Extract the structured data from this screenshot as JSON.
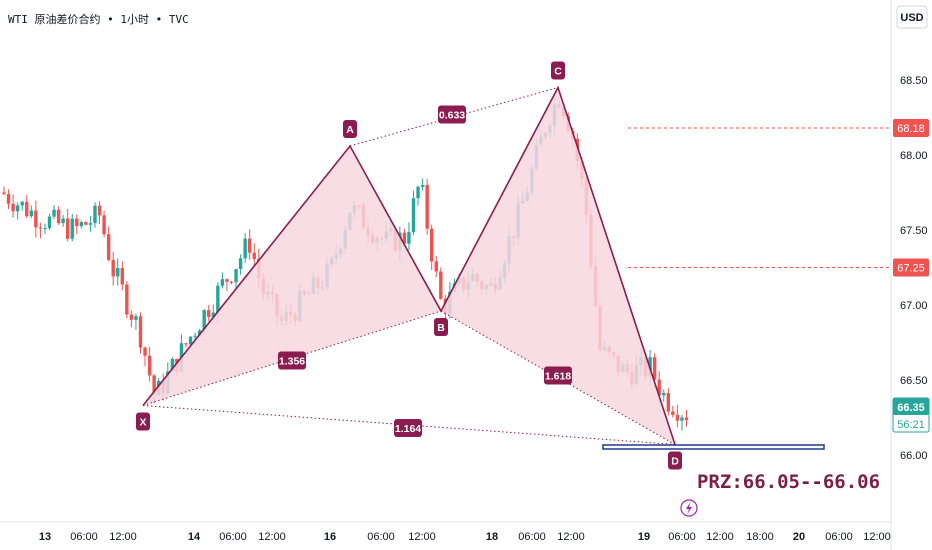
{
  "header": {
    "title": "WTI 原油差价合约 • 1小时 • TVC",
    "currency": "USD"
  },
  "chart_data": {
    "type": "candlestick-harmonic",
    "symbol": "WTI 原油差价合约",
    "interval": "1小时",
    "source": "TVC",
    "ylim": [
      65.7,
      68.93
    ],
    "y_ticks": [
      "68.50",
      "68.00",
      "67.50",
      "67.00",
      "66.50",
      "66.00"
    ],
    "x_ticks": [
      "13",
      "06:00",
      "12:00",
      "14",
      "06:00",
      "12:00",
      "16",
      "06:00",
      "12:00",
      "18",
      "06:00",
      "12:00",
      "19",
      "06:00",
      "12:00",
      "18:00",
      "20",
      "06:00",
      "12:00"
    ],
    "colors": {
      "up": "#26a69a",
      "down": "#ef5350",
      "pattern": "#8b1c4f",
      "fill": "#f8d7e1",
      "prz_box": "#1e3a8a"
    },
    "pattern_points": [
      {
        "label": "X",
        "price": 66.33
      },
      {
        "label": "A",
        "price": 68.06
      },
      {
        "label": "B",
        "price": 66.96
      },
      {
        "label": "C",
        "price": 68.45
      },
      {
        "label": "D",
        "price": 66.07
      }
    ],
    "ratios": [
      "1.356",
      "0.633",
      "1.618",
      "1.164"
    ],
    "price_levels": [
      {
        "label": "68.18",
        "value": 68.18,
        "color": "#ef5350"
      },
      {
        "label": "67.25",
        "value": 67.25,
        "color": "#ef5350"
      }
    ],
    "current_price": {
      "label": "66.35",
      "countdown": "56:21",
      "color": "#26a69a"
    },
    "prz": {
      "text": "PRZ:66.05--66.06",
      "low": 66.05,
      "high": 66.06
    }
  }
}
